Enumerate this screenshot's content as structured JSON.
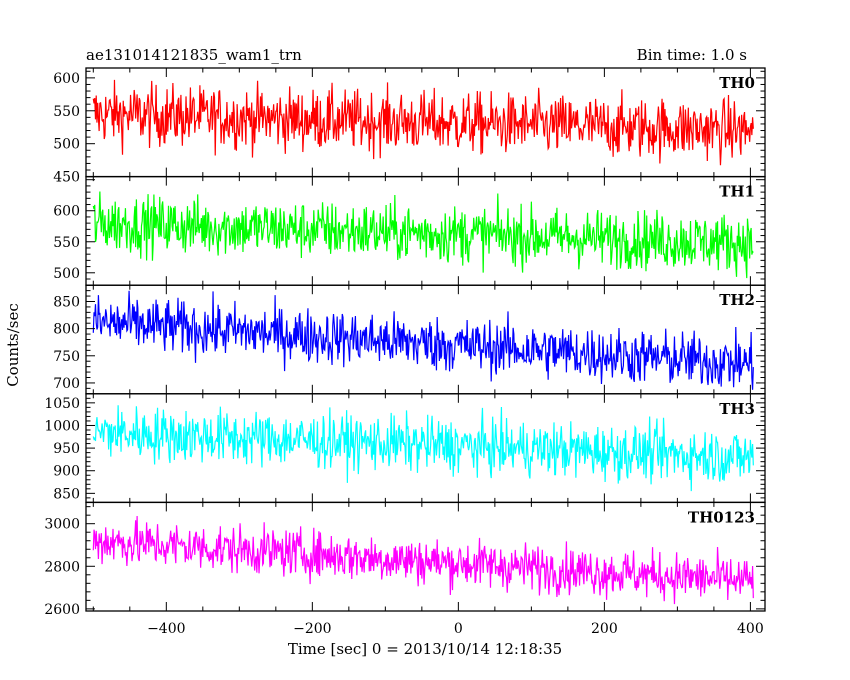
{
  "header": {
    "title": "ae131014121835_wam1_trn",
    "bin_time": "Bin time: 1.0 s"
  },
  "chart_data": {
    "type": "line",
    "ylabel": "Counts/sec",
    "xlabel": "Time [sec] 0 = 2013/10/14 12:18:35",
    "xlim": [
      -510,
      420
    ],
    "data_x_range": [
      -500,
      404
    ],
    "x_ticks": [
      -400,
      -200,
      0,
      200,
      400
    ],
    "panels": [
      {
        "name": "TH0",
        "color": "#ff0000",
        "ylim": [
          450,
          615
        ],
        "y_ticks": [
          450,
          500,
          550,
          600
        ],
        "trend_x": [
          -500,
          404
        ],
        "trend_y": [
          545,
          520
        ],
        "noise": 23
      },
      {
        "name": "TH1",
        "color": "#00ff00",
        "ylim": [
          480,
          655
        ],
        "y_ticks": [
          500,
          550,
          600
        ],
        "trend_x": [
          -500,
          404
        ],
        "trend_y": [
          580,
          548
        ],
        "noise": 23
      },
      {
        "name": "TH2",
        "color": "#0000ff",
        "ylim": [
          680,
          880
        ],
        "y_ticks": [
          700,
          750,
          800,
          850
        ],
        "trend_x": [
          -500,
          404
        ],
        "trend_y": [
          812,
          735
        ],
        "noise": 25
      },
      {
        "name": "TH3",
        "color": "#00ffff",
        "ylim": [
          830,
          1070
        ],
        "y_ticks": [
          850,
          900,
          950,
          1000,
          1050
        ],
        "trend_x": [
          -500,
          404
        ],
        "trend_y": [
          985,
          930
        ],
        "noise": 30
      },
      {
        "name": "TH0123",
        "color": "#ff00ff",
        "ylim": [
          2590,
          3100
        ],
        "y_ticks": [
          2600,
          2800,
          3000
        ],
        "trend_x": [
          -500,
          404
        ],
        "trend_y": [
          2920,
          2730
        ],
        "noise": 55
      }
    ]
  }
}
